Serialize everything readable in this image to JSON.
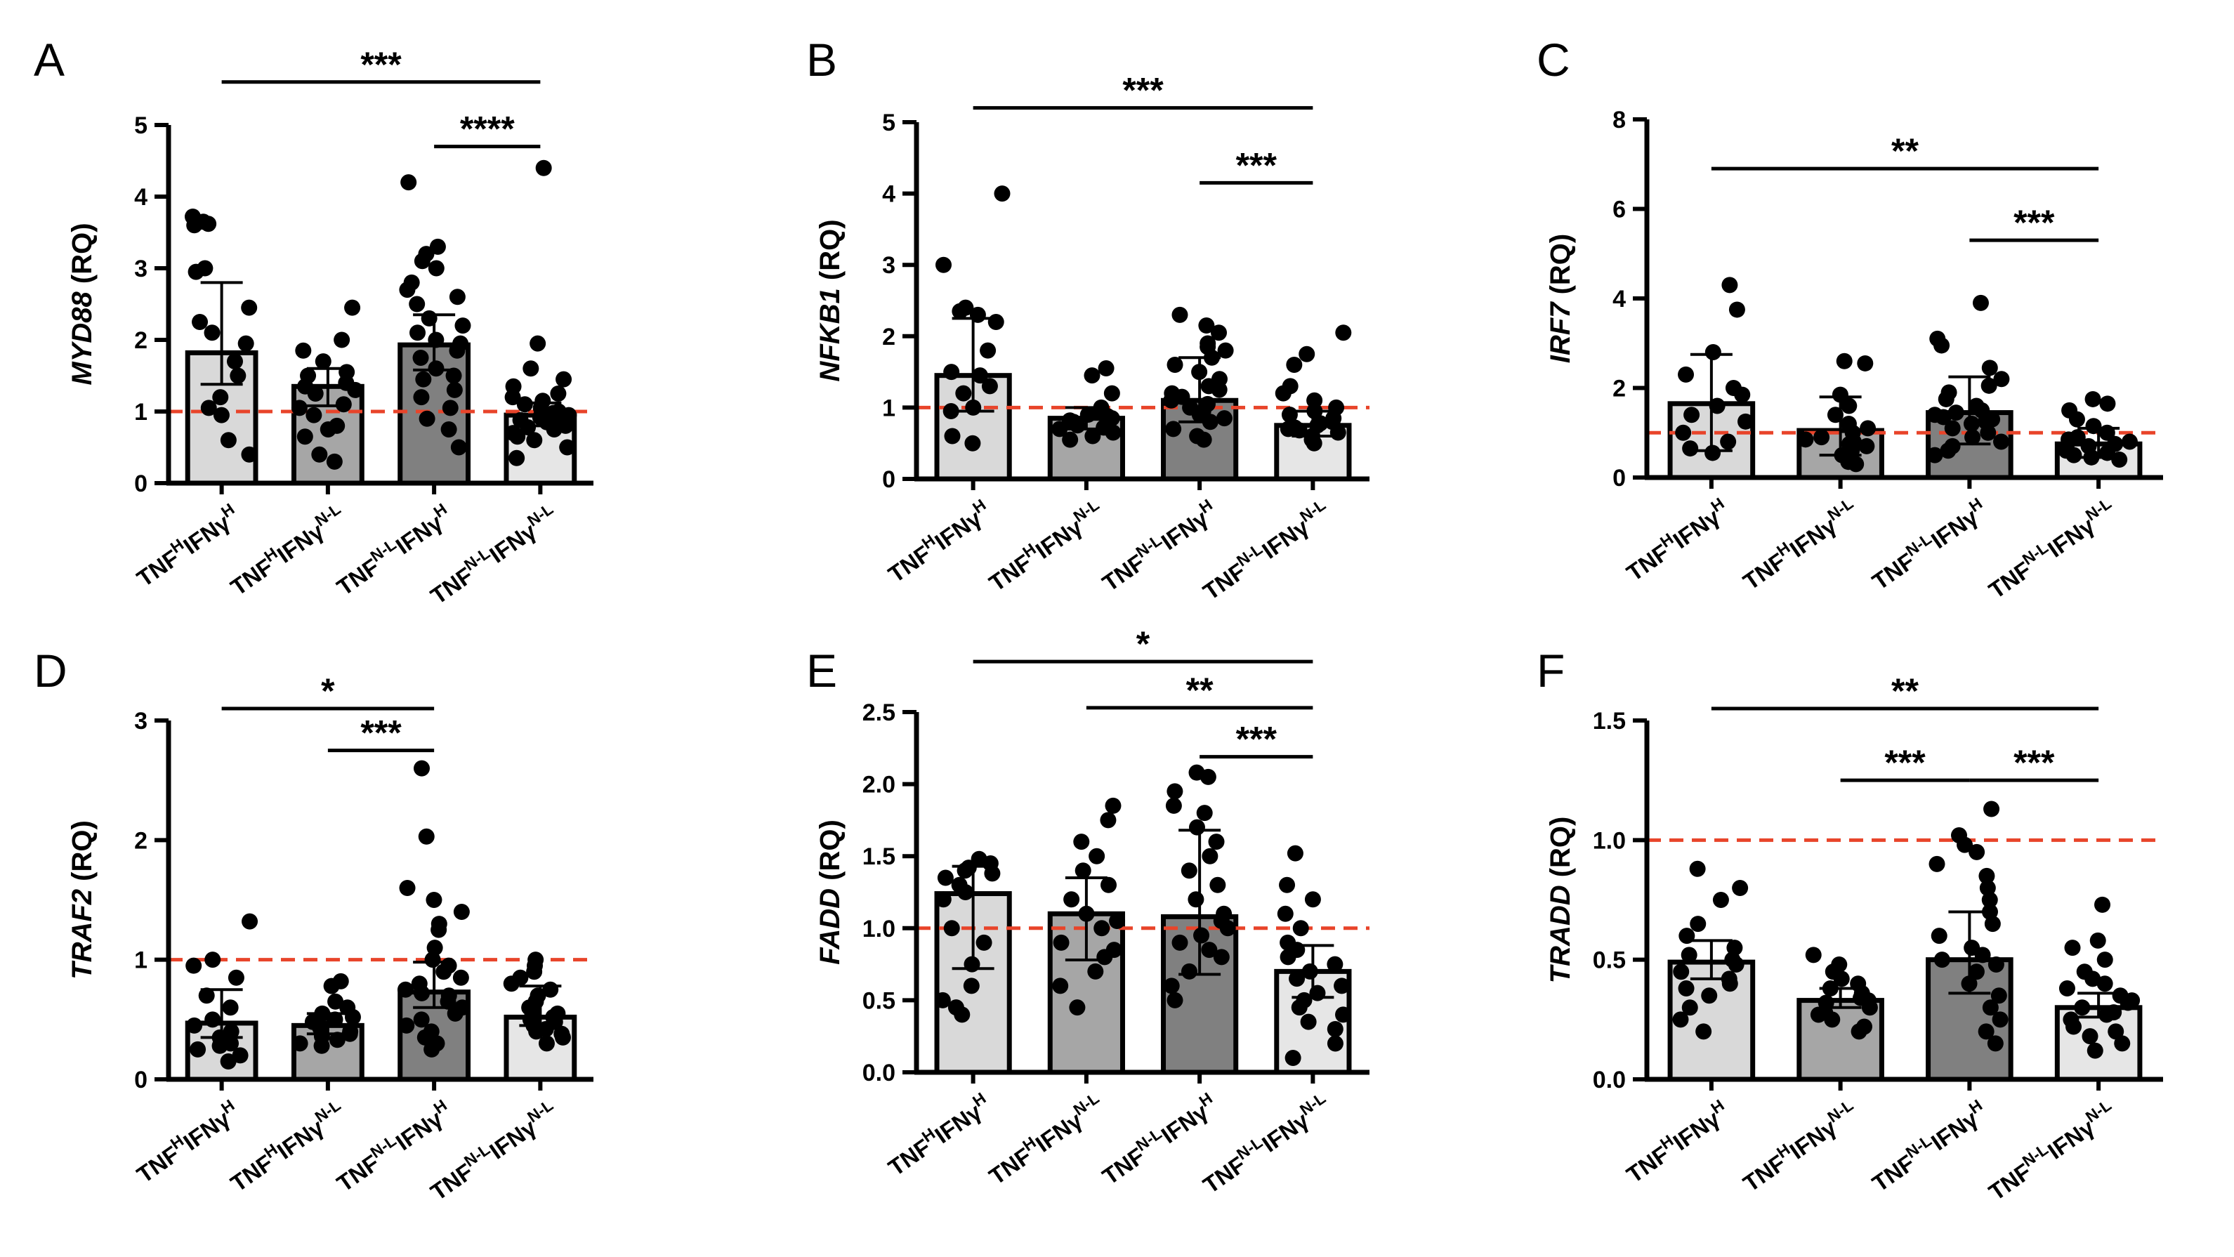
{
  "figure": {
    "categories": [
      {
        "base": "TNF",
        "sup1": "H",
        "mid": "IFNγ",
        "sup2": "H"
      },
      {
        "base": "TNF",
        "sup1": "H",
        "mid": "IFNγ",
        "sup2": "N-L"
      },
      {
        "base": "TNF",
        "sup1": "N-L",
        "mid": "IFNγ",
        "sup2": "H"
      },
      {
        "base": "TNF",
        "sup1": "N-L",
        "mid": "IFNγ",
        "sup2": "N-L"
      }
    ],
    "category_labels": [
      "TNFHIFNγH",
      "TNFHIFNγN-L",
      "TNFN-LIFNγH",
      "TNFN-LIFNγN-L"
    ],
    "reference_line_color": "#e8442a",
    "bar_colors": [
      "#d9d9d9",
      "#a6a6a6",
      "#808080",
      "#e6e6e6"
    ]
  },
  "chart_data": [
    {
      "panel": "A",
      "type": "bar",
      "gene": "MYD88",
      "ylabel_suffix": " (RQ)",
      "categories": [
        "TNFHIFNγH",
        "TNFHIFNγN-L",
        "TNFN-LIFNγH",
        "TNFN-LIFNγN-L"
      ],
      "values": [
        1.82,
        1.35,
        1.93,
        0.95
      ],
      "error_low": [
        1.38,
        1.08,
        1.58,
        0.8
      ],
      "error_high": [
        2.8,
        1.6,
        2.35,
        1.12
      ],
      "points": [
        [
          3.72,
          3.65,
          3.6,
          3.62,
          3.0,
          2.95,
          2.45,
          2.25,
          2.1,
          1.95,
          1.7,
          1.5,
          1.2,
          1.05,
          0.95,
          0.6,
          0.4
        ],
        [
          2.45,
          2.0,
          1.85,
          1.7,
          1.55,
          1.5,
          1.4,
          1.35,
          1.3,
          1.25,
          1.1,
          1.05,
          0.95,
          0.8,
          0.75,
          0.65,
          0.4,
          0.3
        ],
        [
          4.2,
          3.3,
          3.2,
          3.1,
          3.0,
          2.8,
          2.7,
          2.6,
          2.5,
          2.3,
          2.2,
          2.1,
          2.0,
          1.95,
          1.85,
          1.75,
          1.6,
          1.5,
          1.45,
          1.3,
          1.2,
          1.05,
          0.9,
          0.75,
          0.5
        ],
        [
          4.4,
          1.95,
          1.6,
          1.45,
          1.35,
          1.25,
          1.2,
          1.15,
          1.1,
          1.05,
          1.0,
          0.98,
          0.95,
          0.92,
          0.9,
          0.88,
          0.85,
          0.8,
          0.78,
          0.75,
          0.7,
          0.65,
          0.6,
          0.5,
          0.35
        ]
      ],
      "ylim": [
        0,
        5
      ],
      "yticks": [
        0,
        1,
        2,
        3,
        4,
        5
      ],
      "ytick_labels": [
        "0",
        "1",
        "2",
        "3",
        "4",
        "5"
      ],
      "reference_y": 1,
      "significance": [
        {
          "from": 0,
          "to": 3,
          "label": "***",
          "y": 5.6
        },
        {
          "from": 2,
          "to": 3,
          "label": "****",
          "y": 4.7
        }
      ]
    },
    {
      "panel": "B",
      "type": "bar",
      "gene": "NFKB1",
      "ylabel_suffix": " (RQ)",
      "categories": [
        "TNFHIFNγH",
        "TNFHIFNγN-L",
        "TNFN-LIFNγH",
        "TNFN-LIFNγN-L"
      ],
      "values": [
        1.45,
        0.85,
        1.1,
        0.75
      ],
      "error_low": [
        0.95,
        0.7,
        0.8,
        0.6
      ],
      "error_high": [
        2.25,
        1.0,
        1.7,
        0.95
      ],
      "points": [
        [
          4.0,
          3.0,
          2.4,
          2.35,
          2.3,
          2.2,
          1.8,
          1.5,
          1.45,
          1.3,
          1.2,
          1.0,
          0.95,
          0.6,
          0.5
        ],
        [
          1.55,
          1.45,
          1.2,
          1.0,
          0.95,
          0.9,
          0.88,
          0.85,
          0.82,
          0.8,
          0.78,
          0.75,
          0.72,
          0.7,
          0.65,
          0.6,
          0.55
        ],
        [
          2.3,
          2.15,
          2.05,
          1.9,
          1.85,
          1.8,
          1.7,
          1.6,
          1.5,
          1.4,
          1.3,
          1.25,
          1.2,
          1.15,
          1.1,
          1.05,
          1.0,
          0.95,
          0.9,
          0.85,
          0.8,
          0.7,
          0.6,
          0.55
        ],
        [
          2.05,
          1.75,
          1.6,
          1.3,
          1.2,
          1.1,
          1.0,
          0.95,
          0.9,
          0.85,
          0.8,
          0.78,
          0.75,
          0.72,
          0.7,
          0.68,
          0.65,
          0.6,
          0.55,
          0.5
        ]
      ],
      "ylim": [
        0,
        5
      ],
      "yticks": [
        0,
        1,
        2,
        3,
        4,
        5
      ],
      "ytick_labels": [
        "0",
        "1",
        "2",
        "3",
        "4",
        "5"
      ],
      "reference_y": 1,
      "significance": [
        {
          "from": 0,
          "to": 3,
          "label": "***",
          "y": 5.2
        },
        {
          "from": 2,
          "to": 3,
          "label": "***",
          "y": 4.15
        }
      ]
    },
    {
      "panel": "C",
      "type": "bar",
      "gene": "IRF7",
      "ylabel_suffix": " (RQ)",
      "categories": [
        "TNFHIFNγH",
        "TNFHIFNγN-L",
        "TNFN-LIFNγH",
        "TNFN-LIFNγN-L"
      ],
      "values": [
        1.65,
        1.05,
        1.45,
        0.75
      ],
      "error_low": [
        0.6,
        0.5,
        0.75,
        0.45
      ],
      "error_high": [
        2.75,
        1.8,
        2.25,
        1.1
      ],
      "points": [
        [
          4.3,
          3.75,
          2.8,
          2.3,
          2.0,
          1.85,
          1.6,
          1.4,
          1.25,
          1.0,
          0.8,
          0.65,
          0.55
        ],
        [
          2.6,
          2.55,
          1.85,
          1.6,
          1.4,
          1.2,
          1.1,
          1.0,
          0.9,
          0.85,
          0.8,
          0.75,
          0.7,
          0.6,
          0.5,
          0.35,
          0.3
        ],
        [
          3.9,
          3.1,
          2.95,
          2.45,
          2.2,
          2.05,
          1.9,
          1.75,
          1.6,
          1.5,
          1.45,
          1.4,
          1.35,
          1.3,
          1.25,
          1.2,
          1.1,
          1.0,
          0.9,
          0.8,
          0.7,
          0.6,
          0.5
        ],
        [
          1.75,
          1.65,
          1.5,
          1.3,
          1.15,
          1.0,
          0.9,
          0.85,
          0.8,
          0.75,
          0.7,
          0.65,
          0.6,
          0.55,
          0.5,
          0.45,
          0.4
        ]
      ],
      "ylim": [
        0,
        8
      ],
      "yticks": [
        0,
        2,
        4,
        6,
        8
      ],
      "ytick_labels": [
        "0",
        "2",
        "4",
        "6",
        "8"
      ],
      "reference_y": 1,
      "significance": [
        {
          "from": 0,
          "to": 3,
          "label": "**",
          "y": 6.9
        },
        {
          "from": 2,
          "to": 3,
          "label": "***",
          "y": 5.3
        }
      ]
    },
    {
      "panel": "D",
      "type": "bar",
      "gene": "TRAF2",
      "ylabel_suffix": " (RQ)",
      "categories": [
        "TNFHIFNγH",
        "TNFHIFNγN-L",
        "TNFN-LIFNγH",
        "TNFN-LIFNγN-L"
      ],
      "values": [
        0.47,
        0.45,
        0.73,
        0.52
      ],
      "error_low": [
        0.35,
        0.38,
        0.6,
        0.45
      ],
      "error_high": [
        0.75,
        0.55,
        0.98,
        0.78
      ],
      "points": [
        [
          1.32,
          1.0,
          0.95,
          0.85,
          0.7,
          0.6,
          0.5,
          0.45,
          0.4,
          0.35,
          0.3,
          0.28,
          0.25,
          0.2,
          0.15
        ],
        [
          0.82,
          0.78,
          0.65,
          0.6,
          0.55,
          0.52,
          0.5,
          0.48,
          0.45,
          0.43,
          0.4,
          0.38,
          0.36,
          0.33,
          0.3,
          0.28
        ],
        [
          2.6,
          2.03,
          1.6,
          1.5,
          1.4,
          1.3,
          1.25,
          1.1,
          1.0,
          0.95,
          0.9,
          0.85,
          0.8,
          0.75,
          0.72,
          0.7,
          0.65,
          0.6,
          0.55,
          0.5,
          0.45,
          0.4,
          0.35,
          0.3,
          0.25
        ],
        [
          1.0,
          0.95,
          0.9,
          0.85,
          0.8,
          0.75,
          0.7,
          0.65,
          0.6,
          0.58,
          0.55,
          0.52,
          0.5,
          0.48,
          0.45,
          0.42,
          0.4,
          0.38,
          0.35,
          0.3
        ]
      ],
      "ylim": [
        0,
        3
      ],
      "yticks": [
        0,
        1,
        2,
        3
      ],
      "ytick_labels": [
        "0",
        "1",
        "2",
        "3"
      ],
      "reference_y": 1,
      "significance": [
        {
          "from": 0,
          "to": 2,
          "label": "*",
          "y": 3.1
        },
        {
          "from": 1,
          "to": 2,
          "label": "***",
          "y": 2.75
        }
      ]
    },
    {
      "panel": "E",
      "type": "bar",
      "gene": "FADD",
      "ylabel_suffix": " (RQ)",
      "categories": [
        "TNFHIFNγH",
        "TNFHIFNγN-L",
        "TNFN-LIFNγH",
        "TNFN-LIFNγN-L"
      ],
      "values": [
        1.24,
        1.1,
        1.08,
        0.7
      ],
      "error_low": [
        0.72,
        0.78,
        0.68,
        0.52
      ],
      "error_high": [
        1.43,
        1.35,
        1.68,
        0.88
      ],
      "points": [
        [
          1.48,
          1.45,
          1.42,
          1.4,
          1.38,
          1.35,
          1.3,
          1.25,
          1.2,
          1.0,
          0.9,
          0.75,
          0.6,
          0.5,
          0.45,
          0.4
        ],
        [
          1.85,
          1.75,
          1.6,
          1.5,
          1.4,
          1.3,
          1.2,
          1.1,
          1.05,
          1.0,
          0.9,
          0.85,
          0.8,
          0.7,
          0.6,
          0.45
        ],
        [
          2.08,
          2.05,
          1.95,
          1.85,
          1.8,
          1.7,
          1.6,
          1.5,
          1.4,
          1.3,
          1.2,
          1.1,
          1.05,
          1.0,
          0.95,
          0.9,
          0.85,
          0.8,
          0.7,
          0.6,
          0.5
        ],
        [
          1.52,
          1.3,
          1.2,
          1.1,
          1.0,
          0.9,
          0.85,
          0.8,
          0.75,
          0.7,
          0.65,
          0.6,
          0.55,
          0.5,
          0.45,
          0.4,
          0.35,
          0.3,
          0.2,
          0.1
        ]
      ],
      "ylim": [
        0,
        2.5
      ],
      "yticks": [
        0,
        0.5,
        1,
        1.5,
        2,
        2.5
      ],
      "ytick_labels": [
        "0.0",
        "0.5",
        "1.0",
        "1.5",
        "2.0",
        "2.5"
      ],
      "reference_y": 1,
      "significance": [
        {
          "from": 0,
          "to": 3,
          "label": "*",
          "y": 2.85
        },
        {
          "from": 1,
          "to": 3,
          "label": "**",
          "y": 2.53
        },
        {
          "from": 2,
          "to": 3,
          "label": "***",
          "y": 2.19
        }
      ]
    },
    {
      "panel": "F",
      "type": "bar",
      "gene": "TRADD",
      "ylabel_suffix": " (RQ)",
      "categories": [
        "TNFHIFNγH",
        "TNFHIFNγN-L",
        "TNFN-LIFNγH",
        "TNFN-LIFNγN-L"
      ],
      "values": [
        0.49,
        0.33,
        0.5,
        0.3
      ],
      "error_low": [
        0.42,
        0.3,
        0.36,
        0.26
      ],
      "error_high": [
        0.58,
        0.38,
        0.7,
        0.36
      ],
      "points": [
        [
          0.88,
          0.8,
          0.75,
          0.65,
          0.6,
          0.55,
          0.52,
          0.5,
          0.48,
          0.45,
          0.42,
          0.4,
          0.38,
          0.35,
          0.3,
          0.25,
          0.2
        ],
        [
          0.52,
          0.48,
          0.45,
          0.42,
          0.4,
          0.38,
          0.36,
          0.34,
          0.33,
          0.32,
          0.3,
          0.28,
          0.27,
          0.25,
          0.22,
          0.2
        ],
        [
          1.13,
          1.02,
          0.98,
          0.95,
          0.9,
          0.85,
          0.8,
          0.75,
          0.7,
          0.65,
          0.6,
          0.55,
          0.52,
          0.5,
          0.48,
          0.45,
          0.4,
          0.35,
          0.3,
          0.25,
          0.2,
          0.15
        ],
        [
          0.73,
          0.58,
          0.55,
          0.5,
          0.45,
          0.42,
          0.4,
          0.38,
          0.35,
          0.33,
          0.32,
          0.3,
          0.28,
          0.27,
          0.25,
          0.22,
          0.2,
          0.18,
          0.15,
          0.12
        ]
      ],
      "ylim": [
        0,
        1.5
      ],
      "yticks": [
        0,
        0.5,
        1,
        1.5
      ],
      "ytick_labels": [
        "0.0",
        "0.5",
        "1.0",
        "1.5"
      ],
      "reference_y": 1,
      "significance": [
        {
          "from": 0,
          "to": 3,
          "label": "**",
          "y": 1.55
        },
        {
          "from": 1,
          "to": 2,
          "label": "***",
          "y": 1.25
        },
        {
          "from": 2,
          "to": 3,
          "label": "***",
          "y": 1.25
        }
      ]
    }
  ]
}
